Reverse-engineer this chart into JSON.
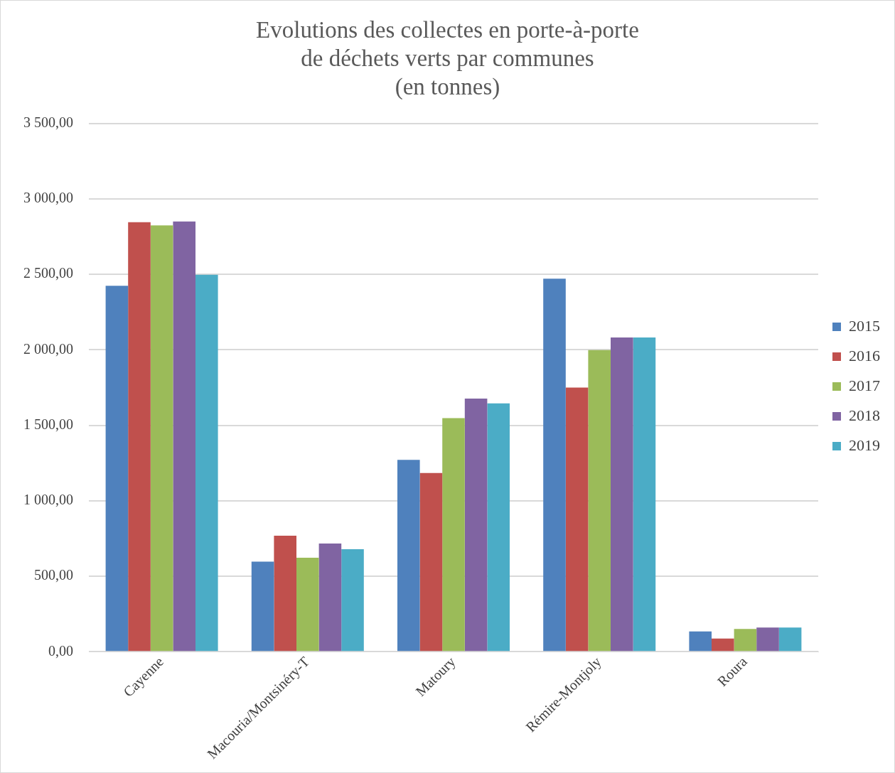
{
  "chart_data": {
    "type": "bar",
    "title": "Evolutions des collectes en porte-à-porte\nde déchets verts par communes\n(en tonnes)",
    "categories": [
      "Cayenne",
      "Macouria/Montsinéry-T",
      "Matoury",
      "Rémire-Montjoly",
      "Roura"
    ],
    "series": [
      {
        "name": "2015",
        "color": "#4f81bd",
        "values": [
          2425,
          597,
          1272,
          2472,
          135
        ]
      },
      {
        "name": "2016",
        "color": "#c0504d",
        "values": [
          2846,
          769,
          1184,
          1750,
          88
        ]
      },
      {
        "name": "2017",
        "color": "#9bbb59",
        "values": [
          2825,
          623,
          1548,
          1999,
          151
        ]
      },
      {
        "name": "2018",
        "color": "#8064a2",
        "values": [
          2851,
          717,
          1677,
          2082,
          161
        ]
      },
      {
        "name": "2019",
        "color": "#4bacc6",
        "values": [
          2498,
          680,
          1646,
          2082,
          161
        ]
      }
    ],
    "ylim": [
      0,
      3500
    ],
    "yticks": [
      {
        "value": 0,
        "label": "0,00"
      },
      {
        "value": 500,
        "label": "500,00"
      },
      {
        "value": 1000,
        "label": "1 000,00"
      },
      {
        "value": 1500,
        "label": "1 500,00"
      },
      {
        "value": 2000,
        "label": "2 000,00"
      },
      {
        "value": 2500,
        "label": "2 500,00"
      },
      {
        "value": 3000,
        "label": "3 000,00"
      },
      {
        "value": 3500,
        "label": "3 500,00"
      }
    ],
    "grid": "y",
    "legend": "right"
  }
}
